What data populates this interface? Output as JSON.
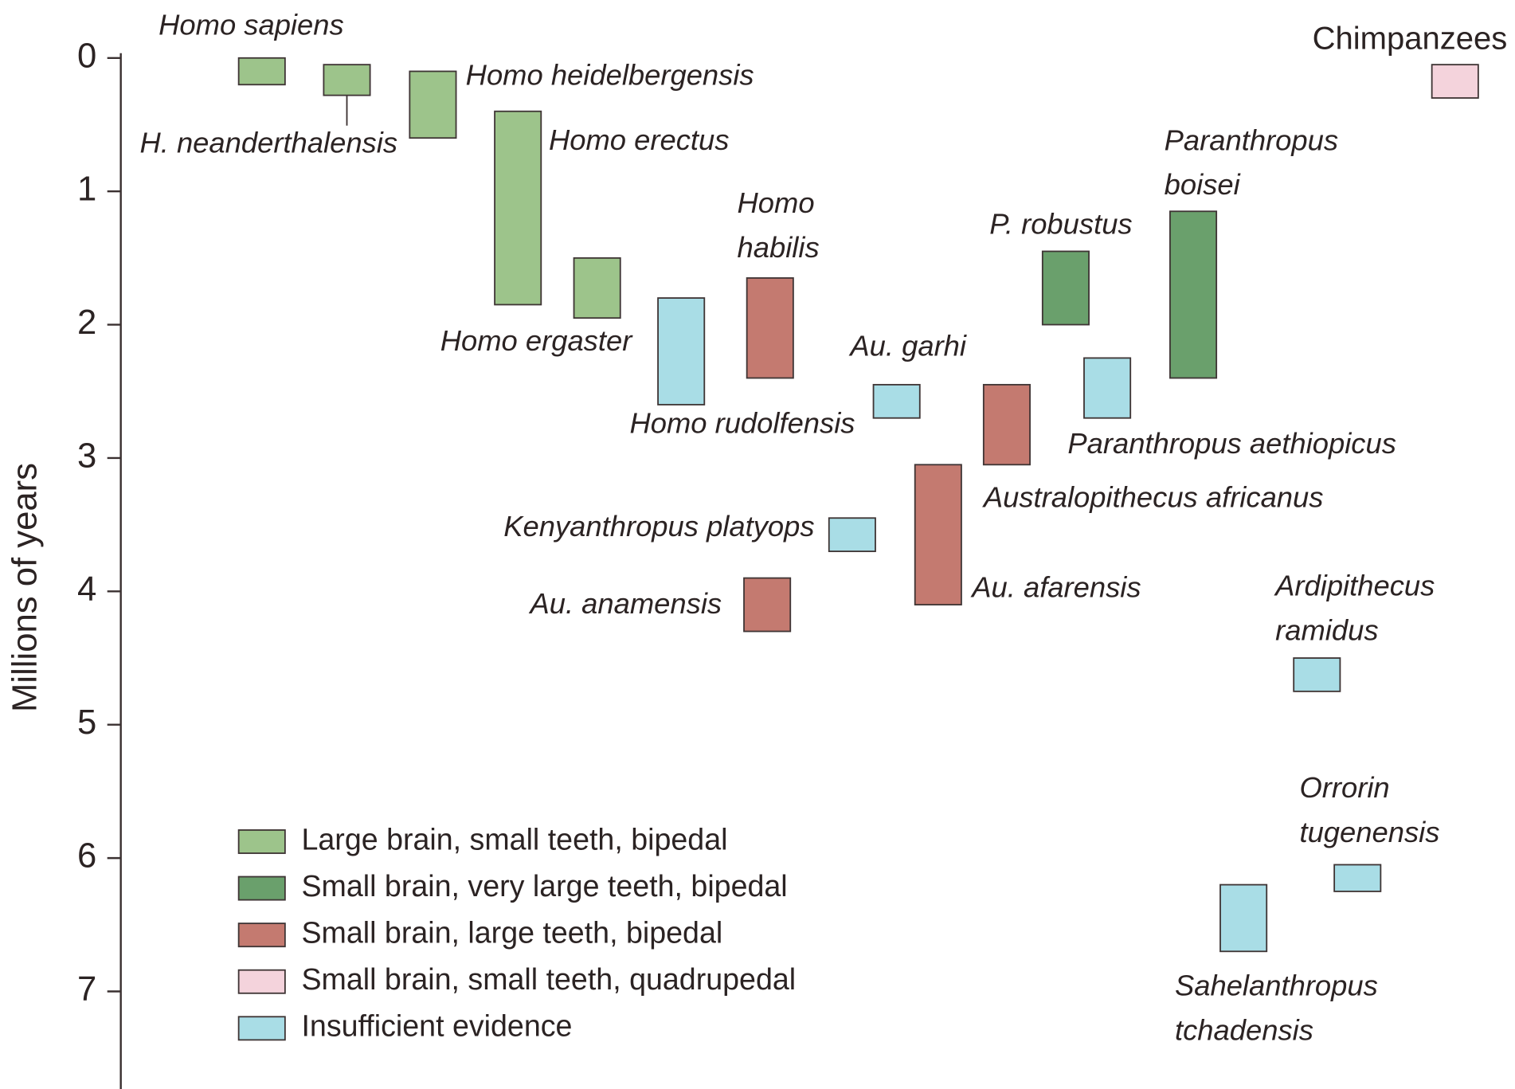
{
  "chart_data": {
    "type": "range",
    "y_label": "Millions of years",
    "ylim": [
      -0.05,
      7.75
    ],
    "yticks": [
      0,
      1,
      2,
      3,
      4,
      5,
      6,
      7
    ],
    "inverted": true,
    "series": [
      {
        "name": "Large brain, small teeth, bipedal",
        "color": "#9dc48b",
        "categories": [
          "Homo sapiens",
          "H. neanderthalensis",
          "Homo heidelbergensis",
          "Homo erectus",
          "Homo ergaster"
        ],
        "values": [
          [
            0,
            0.2
          ],
          [
            0.05,
            0.28
          ],
          [
            0.1,
            0.6
          ],
          [
            0.4,
            1.85
          ],
          [
            1.5,
            1.95
          ]
        ]
      },
      {
        "name": "Small brain, very large teeth, bipedal",
        "color": "#6aa06c",
        "categories": [
          "P. robustus",
          "Paranthropus boisei"
        ],
        "values": [
          [
            1.45,
            2.0
          ],
          [
            1.15,
            2.4
          ]
        ]
      },
      {
        "name": "Small brain, large teeth, bipedal",
        "color": "#c47a70",
        "categories": [
          "Homo habilis",
          "Au. anamensis",
          "Au. afarensis",
          "Australopithecus africanus"
        ],
        "values": [
          [
            1.65,
            2.4
          ],
          [
            3.9,
            4.3
          ],
          [
            3.05,
            4.1
          ],
          [
            2.45,
            3.05
          ]
        ]
      },
      {
        "name": "Small brain, small teeth, quadrupedal",
        "color": "#f4d3dc",
        "categories": [
          "Chimpanzees"
        ],
        "values": [
          [
            0.05,
            0.3
          ]
        ]
      },
      {
        "name": "Insufficient evidence",
        "color": "#a9dde6",
        "categories": [
          "Homo rudolfensis",
          "Au. garhi",
          "Kenyanthropus platyops",
          "Paranthropus aethiopicus",
          "Ardipithecus ramidus",
          "Orrorin tugenensis",
          "Sahelanthropus tchadensis"
        ],
        "values": [
          [
            1.8,
            2.6
          ],
          [
            2.45,
            2.7
          ],
          [
            3.45,
            3.7
          ],
          [
            2.25,
            2.7
          ],
          [
            4.5,
            4.75
          ],
          [
            6.05,
            6.25
          ],
          [
            6.2,
            6.7
          ]
        ]
      }
    ]
  }
}
